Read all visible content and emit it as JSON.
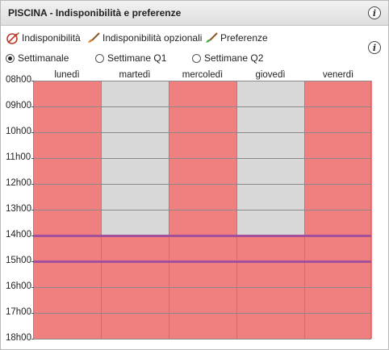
{
  "title": "PISCINA - Indisponibilità e preferenze",
  "legend": [
    {
      "label": "Indisponibilità",
      "icon": "unavailability-brush-icon"
    },
    {
      "label": "Indisponibilità opzionali",
      "icon": "optional-unavailability-brush-icon"
    },
    {
      "label": "Preferenze",
      "icon": "preference-brush-icon"
    }
  ],
  "radios": [
    {
      "label": "Settimanale",
      "checked": true
    },
    {
      "label": "Settimane Q1",
      "checked": false
    },
    {
      "label": "Settimane Q2",
      "checked": false
    }
  ],
  "days": [
    "lunedì",
    "martedì",
    "mercoledì",
    "giovedì",
    "venerdì"
  ],
  "hours": [
    "08h00",
    "09h00",
    "10h00",
    "11h00",
    "12h00",
    "13h00",
    "14h00",
    "15h00",
    "16h00",
    "17h00",
    "18h00"
  ],
  "colors": {
    "unavailable": "#f08080",
    "free": "#d8d8d8",
    "preference_line": "#a3509c"
  },
  "schedule": {
    "lunedì": [
      "u",
      "u",
      "u",
      "u",
      "u",
      "u",
      "u",
      "u",
      "u",
      "u"
    ],
    "martedì": [
      "f",
      "f",
      "f",
      "f",
      "f",
      "f",
      "u",
      "u",
      "u",
      "u"
    ],
    "mercoledì": [
      "u",
      "u",
      "u",
      "u",
      "u",
      "u",
      "u",
      "u",
      "u",
      "u"
    ],
    "giovedì": [
      "f",
      "f",
      "f",
      "f",
      "f",
      "f",
      "u",
      "u",
      "u",
      "u"
    ],
    "venerdì": [
      "u",
      "u",
      "u",
      "u",
      "u",
      "u",
      "u",
      "u",
      "u",
      "u"
    ]
  },
  "preference_lines_at_hours": [
    "14h00",
    "15h00"
  ]
}
